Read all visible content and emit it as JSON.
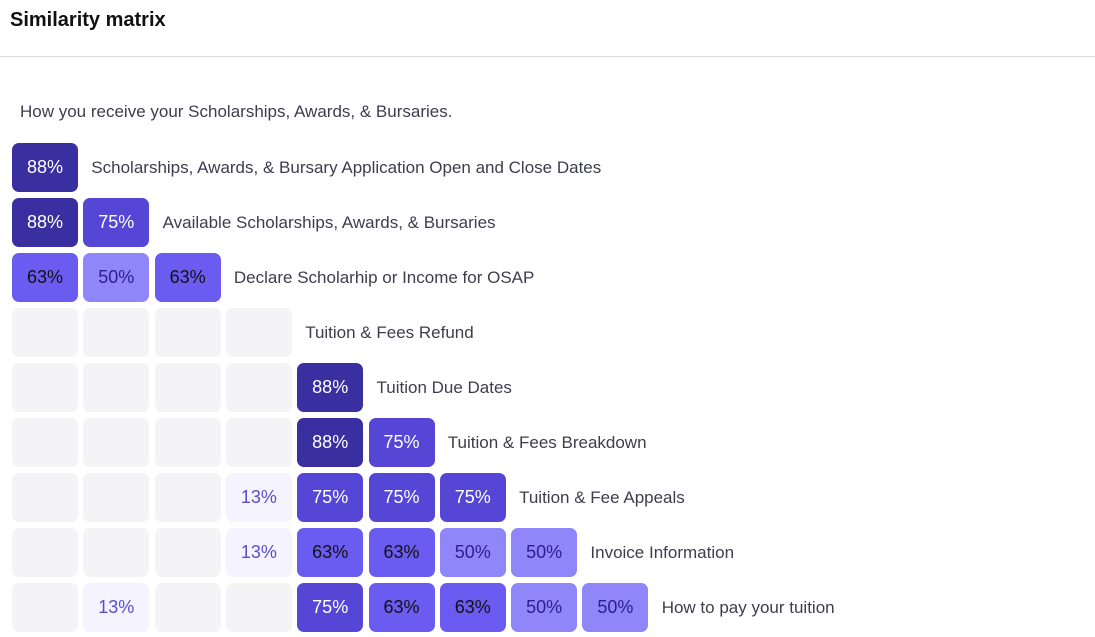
{
  "header": {
    "title": "Similarity matrix"
  },
  "first_item": "How you receive your Scholarships, Awards, & Bursaries.",
  "colors": {
    "level_88": "#3a2fa0",
    "level_75": "#5546d6",
    "level_63": "#6a5cf0",
    "level_50": "#8e86f9",
    "level_13": "#f5f3ff",
    "empty": "#f4f4f6"
  },
  "rows": [
    {
      "label": "Scholarships, Awards, & Bursary Application Open and Close Dates",
      "values": [
        "88%"
      ]
    },
    {
      "label": "Available Scholarships, Awards, & Bursaries",
      "values": [
        "88%",
        "75%"
      ]
    },
    {
      "label": "Declare Scholarhip or Income for OSAP",
      "values": [
        "63%",
        "50%",
        "63%"
      ]
    },
    {
      "label": "Tuition & Fees Refund",
      "values": [
        "",
        "",
        "",
        ""
      ]
    },
    {
      "label": "Tuition Due Dates",
      "values": [
        "",
        "",
        "",
        "",
        "88%"
      ]
    },
    {
      "label": "Tuition & Fees Breakdown",
      "values": [
        "",
        "",
        "",
        "",
        "88%",
        "75%"
      ]
    },
    {
      "label": "Tuition & Fee Appeals",
      "values": [
        "",
        "",
        "",
        "13%",
        "75%",
        "75%",
        "75%"
      ]
    },
    {
      "label": "Invoice Information",
      "values": [
        "",
        "",
        "",
        "13%",
        "63%",
        "63%",
        "50%",
        "50%"
      ]
    },
    {
      "label": "How to pay your tuition",
      "values": [
        "",
        "13%",
        "",
        "",
        "75%",
        "63%",
        "63%",
        "50%",
        "50%"
      ]
    }
  ]
}
